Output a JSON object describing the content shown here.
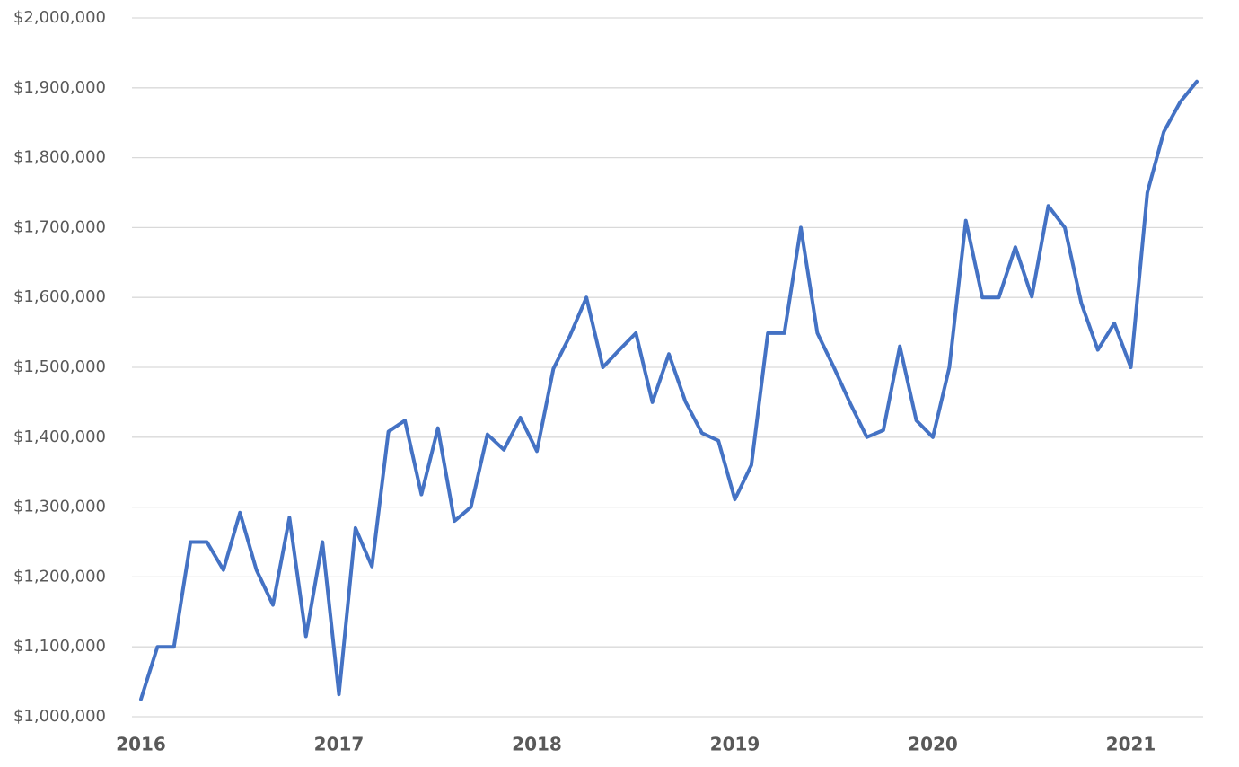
{
  "chart_data": {
    "type": "line",
    "categories": [
      "2016",
      null,
      null,
      null,
      null,
      null,
      null,
      null,
      null,
      null,
      null,
      null,
      "2017",
      null,
      null,
      null,
      null,
      null,
      null,
      null,
      null,
      null,
      null,
      null,
      "2018",
      null,
      null,
      null,
      null,
      null,
      null,
      null,
      null,
      null,
      null,
      null,
      "2019",
      null,
      null,
      null,
      null,
      null,
      null,
      null,
      null,
      null,
      null,
      null,
      "2020",
      null,
      null,
      null,
      null,
      null,
      null,
      null,
      null,
      null,
      null,
      null,
      "2021",
      null,
      null,
      null,
      null
    ],
    "values": [
      1025000,
      1100000,
      1100000,
      1250000,
      1250000,
      1210000,
      1292000,
      1210000,
      1160000,
      1285000,
      1115000,
      1250000,
      1032000,
      1270000,
      1215000,
      1408000,
      1424000,
      1318000,
      1413000,
      1280000,
      1300000,
      1404000,
      1382000,
      1428000,
      1380000,
      1498000,
      1545000,
      1600000,
      1500000,
      1525000,
      1549000,
      1450000,
      1519000,
      1451000,
      1406000,
      1395000,
      1311000,
      1360000,
      1549000,
      1549000,
      1700000,
      1549000,
      1500000,
      1448000,
      1400000,
      1410000,
      1530000,
      1424000,
      1400000,
      1500000,
      1710000,
      1600000,
      1600000,
      1672000,
      1601000,
      1731000,
      1700000,
      1592000,
      1525000,
      1563000,
      1500000,
      1750000,
      1837000,
      1880000,
      1909000
    ],
    "color": "#4472c4",
    "ylim": [
      1000000,
      2000000
    ],
    "yticks": [
      {
        "value": 1000000,
        "label": "$1,000,000"
      },
      {
        "value": 1100000,
        "label": "$1,100,000"
      },
      {
        "value": 1200000,
        "label": "$1,200,000"
      },
      {
        "value": 1300000,
        "label": "$1,300,000"
      },
      {
        "value": 1400000,
        "label": "$1,400,000"
      },
      {
        "value": 1500000,
        "label": "$1,500,000"
      },
      {
        "value": 1600000,
        "label": "$1,600,000"
      },
      {
        "value": 1700000,
        "label": "$1,700,000"
      },
      {
        "value": 1800000,
        "label": "$1,800,000"
      },
      {
        "value": 1900000,
        "label": "$1,900,000"
      },
      {
        "value": 2000000,
        "label": "$2,000,000"
      }
    ],
    "grid": true
  }
}
